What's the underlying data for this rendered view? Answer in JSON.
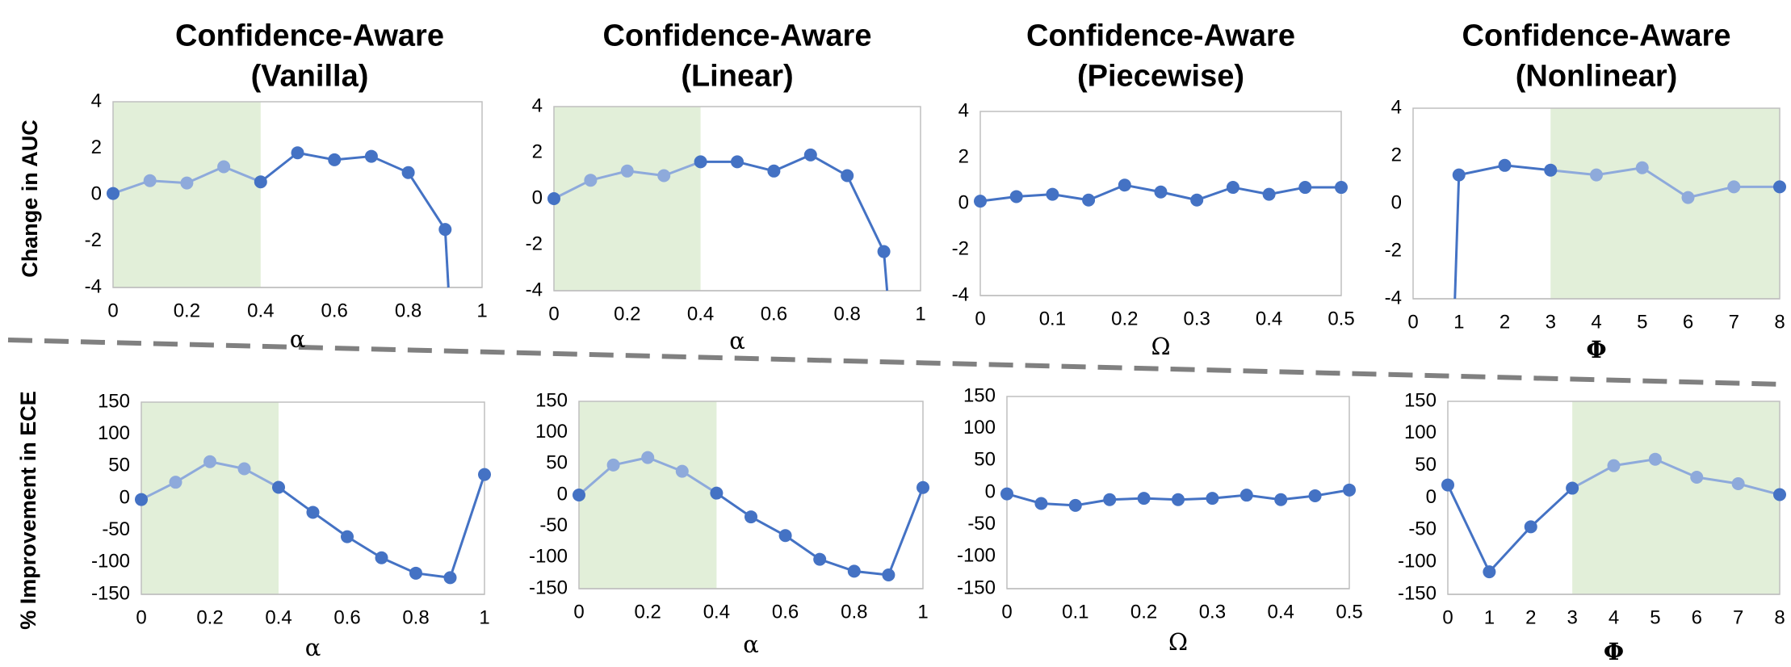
{
  "colors": {
    "line": "#4472c4",
    "line_in_shade": "#8eaadb",
    "shade": "#e2efd9",
    "axis": "#bfbfbf",
    "separator": "#808080"
  },
  "figure": {
    "row_labels": [
      "Change in AUC",
      "% Improvement in ECE"
    ]
  },
  "chart_data": [
    {
      "type": "line",
      "title": [
        "Confidence-Aware",
        "(Vanilla)"
      ],
      "xlabel": "α",
      "ylabel": "Change in AUC",
      "x": [
        0,
        0.1,
        0.2,
        0.3,
        0.4,
        0.5,
        0.6,
        0.7,
        0.8,
        0.9
      ],
      "values": [
        0.05,
        0.6,
        0.5,
        1.2,
        0.55,
        1.8,
        1.5,
        1.65,
        0.95,
        -1.5
      ],
      "drop_below_axis": true,
      "xlim": [
        0,
        1
      ],
      "ylim": [
        -4,
        4
      ],
      "xticks": [
        "0",
        "0.2",
        "0.4",
        "0.6",
        "0.8",
        "1"
      ],
      "yticks": [
        "4",
        "2",
        "0",
        "-2",
        "-4"
      ],
      "shade": [
        0,
        0.4
      ]
    },
    {
      "type": "line",
      "title": [
        "Confidence-Aware",
        "(Linear)"
      ],
      "xlabel": "α",
      "ylabel": "Change in AUC",
      "x": [
        0,
        0.1,
        0.2,
        0.3,
        0.4,
        0.5,
        0.6,
        0.7,
        0.8,
        0.9
      ],
      "values": [
        0,
        0.8,
        1.2,
        1.0,
        1.6,
        1.6,
        1.2,
        1.9,
        1.0,
        -2.3
      ],
      "drop_below_axis": true,
      "xlim": [
        0,
        1
      ],
      "ylim": [
        -4,
        4
      ],
      "xticks": [
        "0",
        "0.2",
        "0.4",
        "0.6",
        "0.8",
        "1"
      ],
      "yticks": [
        "4",
        "2",
        "0",
        "-2",
        "-4"
      ],
      "shade": [
        0,
        0.4
      ]
    },
    {
      "type": "line",
      "title": [
        "Confidence-Aware",
        "(Piecewise)"
      ],
      "xlabel": "Ω",
      "ylabel": "Change in AUC",
      "x": [
        0,
        0.05,
        0.1,
        0.15,
        0.2,
        0.25,
        0.3,
        0.35,
        0.4,
        0.45,
        0.5
      ],
      "values": [
        0.1,
        0.3,
        0.4,
        0.15,
        0.8,
        0.5,
        0.15,
        0.7,
        0.4,
        0.7,
        0.7
      ],
      "drop_below_axis": false,
      "xlim": [
        0,
        0.5
      ],
      "ylim": [
        -4,
        4
      ],
      "xticks": [
        "0",
        "0.1",
        "0.2",
        "0.3",
        "0.4",
        "0.5"
      ],
      "yticks": [
        "4",
        "2",
        "0",
        "-2",
        "-4"
      ],
      "shade": null
    },
    {
      "type": "line",
      "title": [
        "Confidence-Aware",
        "(Nonlinear)"
      ],
      "xlabel": "Φ",
      "ylabel": "Change in AUC",
      "x": [
        1,
        2,
        3,
        4,
        5,
        6,
        7,
        8
      ],
      "values": [
        1.2,
        1.6,
        1.4,
        1.2,
        1.5,
        0.25,
        0.7,
        0.7
      ],
      "rise_from_below_axis": true,
      "xlim": [
        0,
        8
      ],
      "ylim": [
        -4,
        4
      ],
      "xticks": [
        "0",
        "1",
        "2",
        "3",
        "4",
        "5",
        "6",
        "7",
        "8"
      ],
      "yticks": [
        "4",
        "2",
        "0",
        "-2",
        "-4"
      ],
      "shade": [
        3,
        8
      ]
    },
    {
      "type": "line",
      "title": null,
      "xlabel": "α",
      "ylabel": "% Improvement in ECE",
      "x": [
        0,
        0.1,
        0.2,
        0.3,
        0.4,
        0.5,
        0.6,
        0.7,
        0.8,
        0.9,
        1.0
      ],
      "values": [
        -2,
        25,
        57,
        46,
        17,
        -22,
        -60,
        -93,
        -117,
        -124,
        37
      ],
      "xlim": [
        0,
        1
      ],
      "ylim": [
        -150,
        150
      ],
      "xticks": [
        "0",
        "0.2",
        "0.4",
        "0.6",
        "0.8",
        "1"
      ],
      "yticks": [
        "150",
        "100",
        "50",
        "0",
        "-50",
        "-100",
        "-150"
      ],
      "shade": [
        0,
        0.4
      ]
    },
    {
      "type": "line",
      "title": null,
      "xlabel": "α",
      "ylabel": "% Improvement in ECE",
      "x": [
        0,
        0.1,
        0.2,
        0.3,
        0.4,
        0.5,
        0.6,
        0.7,
        0.8,
        0.9,
        1.0
      ],
      "values": [
        0,
        48,
        60,
        38,
        3,
        -35,
        -65,
        -103,
        -122,
        -128,
        12
      ],
      "xlim": [
        0,
        1
      ],
      "ylim": [
        -150,
        150
      ],
      "xticks": [
        "0",
        "0.2",
        "0.4",
        "0.6",
        "0.8",
        "1"
      ],
      "yticks": [
        "150",
        "100",
        "50",
        "0",
        "-50",
        "-100",
        "-150"
      ],
      "shade": [
        0,
        0.4
      ]
    },
    {
      "type": "line",
      "title": null,
      "xlabel": "Ω",
      "ylabel": "% Improvement in ECE",
      "x": [
        0,
        0.05,
        0.1,
        0.15,
        0.2,
        0.25,
        0.3,
        0.35,
        0.4,
        0.45,
        0.5
      ],
      "values": [
        -2,
        -17,
        -20,
        -11,
        -9,
        -11,
        -9,
        -4,
        -11,
        -5,
        4
      ],
      "xlim": [
        0,
        0.5
      ],
      "ylim": [
        -150,
        150
      ],
      "xticks": [
        "0",
        "0.1",
        "0.2",
        "0.3",
        "0.4",
        "0.5"
      ],
      "yticks": [
        "150",
        "100",
        "50",
        "0",
        "-50",
        "-100",
        "-150"
      ],
      "shade": null
    },
    {
      "type": "line",
      "title": null,
      "xlabel": "Φ",
      "ylabel": "% Improvement in ECE",
      "x": [
        0,
        1,
        2,
        3,
        4,
        5,
        6,
        7,
        8
      ],
      "values": [
        20,
        -115,
        -45,
        15,
        50,
        60,
        32,
        22,
        5
      ],
      "xlim": [
        0,
        8
      ],
      "ylim": [
        -150,
        150
      ],
      "xticks": [
        "0",
        "1",
        "2",
        "3",
        "4",
        "5",
        "6",
        "7",
        "8"
      ],
      "yticks": [
        "150",
        "100",
        "50",
        "0",
        "-50",
        "-100",
        "-150"
      ],
      "shade": [
        3,
        8
      ]
    }
  ]
}
